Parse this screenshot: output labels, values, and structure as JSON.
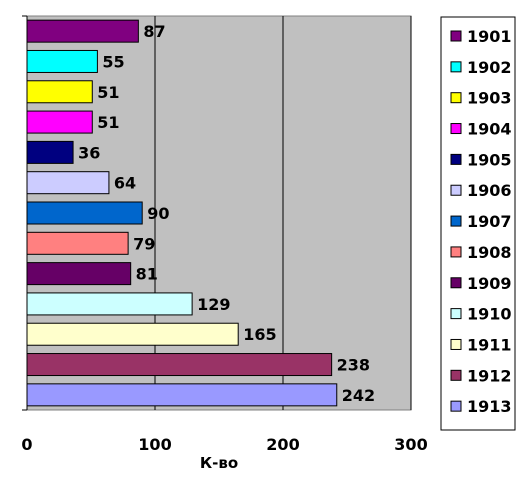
{
  "chart_data": {
    "type": "bar",
    "orientation": "horizontal",
    "categories": [
      "1901",
      "1902",
      "1903",
      "1904",
      "1905",
      "1906",
      "1907",
      "1908",
      "1909",
      "1910",
      "1911",
      "1912",
      "1913"
    ],
    "values": [
      87,
      55,
      51,
      51,
      36,
      64,
      90,
      79,
      81,
      129,
      165,
      238,
      242
    ],
    "colors": [
      "#800080",
      "#00ffff",
      "#ffff00",
      "#ff00ff",
      "#000080",
      "#ccccff",
      "#0066cc",
      "#ff8080",
      "#660066",
      "#ccffff",
      "#ffffcc",
      "#993366",
      "#9999ff"
    ],
    "title": "",
    "xlabel": "К-во",
    "ylabel": "",
    "xlim": [
      0,
      300
    ],
    "xticks": [
      "0",
      "100",
      "200",
      "300"
    ],
    "data_labels": [
      "87",
      "55",
      "51",
      "51",
      "36",
      "64",
      "90",
      "79",
      "81",
      "129",
      "165",
      "238",
      "242"
    ],
    "grid": "vertical major gridlines",
    "plot_background": "#c0c0c0",
    "legend": {
      "placement": "right",
      "entries": [
        "1901",
        "1902",
        "1903",
        "1904",
        "1905",
        "1906",
        "1907",
        "1908",
        "1909",
        "1910",
        "1911",
        "1912",
        "1913"
      ]
    }
  }
}
